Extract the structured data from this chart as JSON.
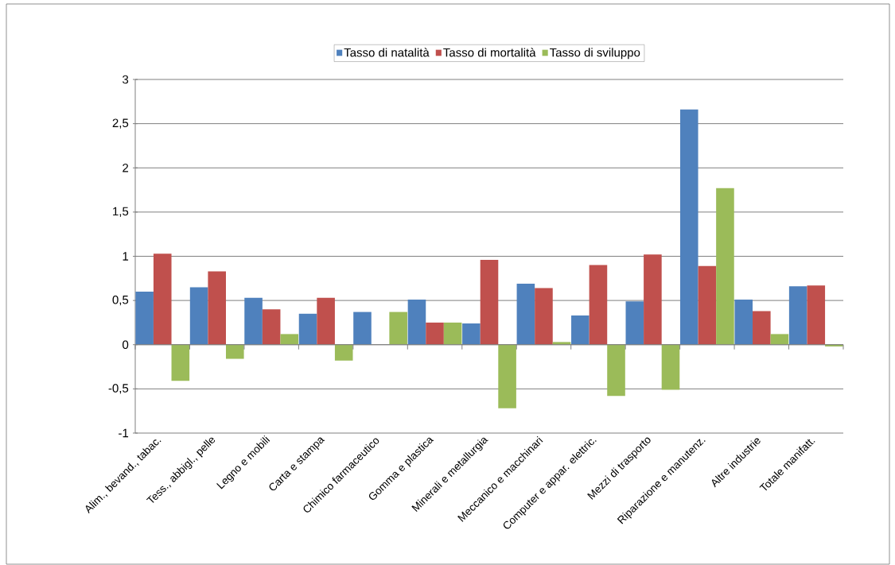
{
  "chart_data": {
    "type": "bar",
    "categories": [
      "Alim., bevand., tabac.",
      "Tess., abbigl., pelle",
      "Legno e mobili",
      "Carta e stampa",
      "Chimico farmaceutico",
      "Gomma e plastica",
      "Minerali e metallurgia",
      "Meccanico e macchinari",
      "Computer e appar. elettric.",
      "Mezzi di trasporto",
      "Riparazione e manutenz.",
      "Altre industrie",
      "Totale manifatt."
    ],
    "series": [
      {
        "name": "Tasso di natalità",
        "color": "#4f81bd",
        "values": [
          0.6,
          0.65,
          0.53,
          0.35,
          0.37,
          0.51,
          0.24,
          0.69,
          0.33,
          0.49,
          2.66,
          0.51,
          0.66
        ]
      },
      {
        "name": "Tasso di mortalità",
        "color": "#c0504d",
        "values": [
          1.03,
          0.83,
          0.4,
          0.53,
          0,
          0.25,
          0.96,
          0.64,
          0.9,
          1.02,
          0.89,
          0.38,
          0.67
        ]
      },
      {
        "name": "Tasso di sviluppo",
        "color": "#9bbb59",
        "values": [
          -0.41,
          -0.16,
          0.12,
          -0.18,
          0.37,
          0.25,
          -0.72,
          0.03,
          -0.58,
          -0.51,
          1.77,
          0.12,
          -0.02
        ]
      }
    ],
    "ylim": [
      -1,
      3
    ],
    "yticks": [
      {
        "value": -1,
        "label": "-1"
      },
      {
        "value": -0.5,
        "label": "-0,5"
      },
      0,
      {
        "value": 0.5,
        "label": "0,5"
      },
      1,
      {
        "value": 1.5,
        "label": "1,5"
      },
      2,
      {
        "value": 2.5,
        "label": "2,5"
      },
      3
    ],
    "grid": "y",
    "legend": "top"
  }
}
